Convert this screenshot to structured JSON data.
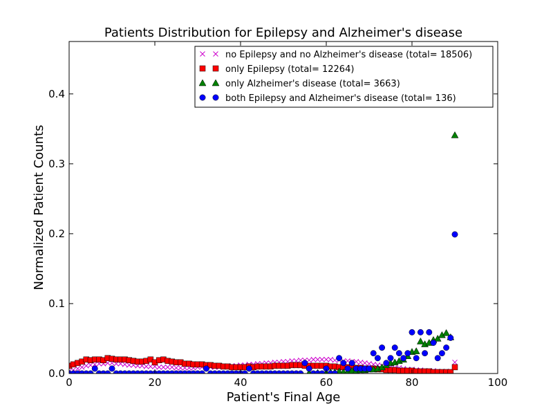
{
  "chart_data": {
    "type": "scatter",
    "title": "Patients Distribution for Epilepsy and Alzheimer's disease",
    "xlabel": "Patient's Final Age",
    "ylabel": "Normalized Patient Counts",
    "xlim": [
      0,
      100
    ],
    "ylim": [
      0,
      0.475
    ],
    "xticks": [
      "0",
      "20",
      "40",
      "60",
      "80",
      "100"
    ],
    "yticks": [
      "0.0",
      "0.1",
      "0.2",
      "0.3",
      "0.4"
    ],
    "grid": false,
    "legend_position": "top-right",
    "series": [
      {
        "name": "no Epilepsy and no Alzheimer's disease (total= 18506)",
        "marker": "x",
        "color": "#cc00cc",
        "x": [
          0,
          1,
          2,
          3,
          4,
          5,
          6,
          7,
          8,
          9,
          10,
          11,
          12,
          13,
          14,
          15,
          16,
          17,
          18,
          19,
          20,
          21,
          22,
          23,
          24,
          25,
          26,
          27,
          28,
          29,
          30,
          31,
          32,
          33,
          34,
          35,
          36,
          37,
          38,
          39,
          40,
          41,
          42,
          43,
          44,
          45,
          46,
          47,
          48,
          49,
          50,
          51,
          52,
          53,
          54,
          55,
          56,
          57,
          58,
          59,
          60,
          61,
          62,
          63,
          64,
          65,
          66,
          67,
          68,
          69,
          70,
          71,
          72,
          73,
          74,
          75,
          76,
          77,
          78,
          79,
          80,
          81,
          82,
          83,
          84,
          85,
          86,
          87,
          88,
          89,
          90
        ],
        "y": [
          0.003,
          0.005,
          0.007,
          0.009,
          0.011,
          0.012,
          0.013,
          0.014,
          0.014,
          0.015,
          0.015,
          0.014,
          0.014,
          0.013,
          0.012,
          0.012,
          0.011,
          0.011,
          0.01,
          0.01,
          0.01,
          0.009,
          0.009,
          0.009,
          0.009,
          0.008,
          0.008,
          0.008,
          0.008,
          0.008,
          0.009,
          0.009,
          0.009,
          0.009,
          0.009,
          0.009,
          0.01,
          0.01,
          0.011,
          0.011,
          0.012,
          0.012,
          0.013,
          0.013,
          0.014,
          0.014,
          0.015,
          0.015,
          0.016,
          0.016,
          0.017,
          0.017,
          0.018,
          0.018,
          0.019,
          0.019,
          0.019,
          0.02,
          0.02,
          0.02,
          0.02,
          0.02,
          0.019,
          0.019,
          0.018,
          0.018,
          0.017,
          0.017,
          0.016,
          0.015,
          0.014,
          0.013,
          0.012,
          0.011,
          0.01,
          0.009,
          0.008,
          0.008,
          0.007,
          0.006,
          0.006,
          0.005,
          0.005,
          0.004,
          0.004,
          0.004,
          0.003,
          0.003,
          0.003,
          0.003,
          0.016
        ]
      },
      {
        "name": "only Epilepsy (total= 12264)",
        "marker": "square",
        "color": "#ff0000",
        "x": [
          0,
          1,
          2,
          3,
          4,
          5,
          6,
          7,
          8,
          9,
          10,
          11,
          12,
          13,
          14,
          15,
          16,
          17,
          18,
          19,
          20,
          21,
          22,
          23,
          24,
          25,
          26,
          27,
          28,
          29,
          30,
          31,
          32,
          33,
          34,
          35,
          36,
          37,
          38,
          39,
          40,
          41,
          42,
          43,
          44,
          45,
          46,
          47,
          48,
          49,
          50,
          51,
          52,
          53,
          54,
          55,
          56,
          57,
          58,
          59,
          60,
          61,
          62,
          63,
          64,
          65,
          66,
          67,
          68,
          69,
          70,
          71,
          72,
          73,
          74,
          75,
          76,
          77,
          78,
          79,
          80,
          81,
          82,
          83,
          84,
          85,
          86,
          87,
          88,
          89,
          90
        ],
        "y": [
          0.011,
          0.013,
          0.015,
          0.017,
          0.02,
          0.019,
          0.02,
          0.02,
          0.019,
          0.022,
          0.021,
          0.02,
          0.02,
          0.02,
          0.019,
          0.018,
          0.017,
          0.017,
          0.018,
          0.02,
          0.016,
          0.019,
          0.02,
          0.018,
          0.017,
          0.016,
          0.016,
          0.014,
          0.014,
          0.013,
          0.013,
          0.013,
          0.012,
          0.012,
          0.011,
          0.011,
          0.01,
          0.01,
          0.009,
          0.009,
          0.009,
          0.009,
          0.01,
          0.009,
          0.01,
          0.01,
          0.01,
          0.01,
          0.011,
          0.011,
          0.011,
          0.011,
          0.012,
          0.012,
          0.012,
          0.011,
          0.011,
          0.011,
          0.011,
          0.011,
          0.011,
          0.01,
          0.01,
          0.009,
          0.009,
          0.009,
          0.009,
          0.008,
          0.008,
          0.007,
          0.007,
          0.007,
          0.006,
          0.006,
          0.005,
          0.005,
          0.005,
          0.004,
          0.004,
          0.004,
          0.004,
          0.003,
          0.003,
          0.003,
          0.003,
          0.002,
          0.002,
          0.002,
          0.002,
          0.002,
          0.009
        ]
      },
      {
        "name": "only Alzheimer's disease (total= 3663)",
        "marker": "triangle",
        "color": "#008000",
        "x": [
          56,
          58,
          60,
          61,
          62,
          63,
          64,
          65,
          66,
          67,
          68,
          69,
          70,
          71,
          72,
          73,
          74,
          75,
          76,
          77,
          78,
          79,
          80,
          81,
          82,
          83,
          84,
          85,
          86,
          87,
          88,
          89,
          90
        ],
        "y": [
          0.001,
          0.001,
          0.001,
          0.002,
          0.002,
          0.003,
          0.002,
          0.003,
          0.004,
          0.004,
          0.005,
          0.005,
          0.006,
          0.006,
          0.007,
          0.009,
          0.012,
          0.015,
          0.016,
          0.018,
          0.02,
          0.025,
          0.031,
          0.032,
          0.046,
          0.042,
          0.044,
          0.048,
          0.05,
          0.055,
          0.058,
          0.052,
          0.341
        ]
      },
      {
        "name": "both Epilepsy and Alzheimer's disease (total= 136)",
        "marker": "circle",
        "color": "#0000ff",
        "x": [
          0,
          1,
          2,
          3,
          4,
          5,
          6,
          7,
          8,
          9,
          10,
          11,
          12,
          13,
          14,
          15,
          16,
          17,
          18,
          19,
          20,
          21,
          22,
          23,
          24,
          25,
          26,
          27,
          28,
          29,
          30,
          31,
          32,
          33,
          34,
          35,
          36,
          37,
          38,
          39,
          40,
          41,
          42,
          43,
          44,
          45,
          46,
          47,
          48,
          49,
          50,
          51,
          52,
          53,
          54,
          55,
          56,
          57,
          58,
          59,
          60,
          61,
          62,
          63,
          64,
          65,
          66,
          67,
          68,
          69,
          70,
          71,
          72,
          73,
          74,
          75,
          76,
          77,
          78,
          79,
          80,
          81,
          82,
          83,
          84,
          85,
          86,
          87,
          88,
          89,
          90
        ],
        "y": [
          0,
          0,
          0,
          0,
          0,
          0,
          0.007,
          0,
          0,
          0,
          0.007,
          0,
          0,
          0,
          0,
          0,
          0,
          0,
          0,
          0,
          0,
          0,
          0,
          0,
          0,
          0,
          0,
          0,
          0,
          0,
          0,
          0,
          0.007,
          0,
          0,
          0,
          0,
          0,
          0,
          0,
          0,
          0,
          0.007,
          0,
          0,
          0,
          0,
          0,
          0,
          0,
          0,
          0,
          0,
          0,
          0,
          0.015,
          0.007,
          0,
          0,
          0,
          0.007,
          0,
          0,
          0.022,
          0.015,
          0.007,
          0.015,
          0.007,
          0.007,
          0.007,
          0.007,
          0.029,
          0.022,
          0.037,
          0.015,
          0.022,
          0.037,
          0.029,
          0.022,
          0.029,
          0.059,
          0.022,
          0.059,
          0.029,
          0.059,
          0.044,
          0.022,
          0.029,
          0.037,
          0.051,
          0.199
        ]
      }
    ]
  }
}
